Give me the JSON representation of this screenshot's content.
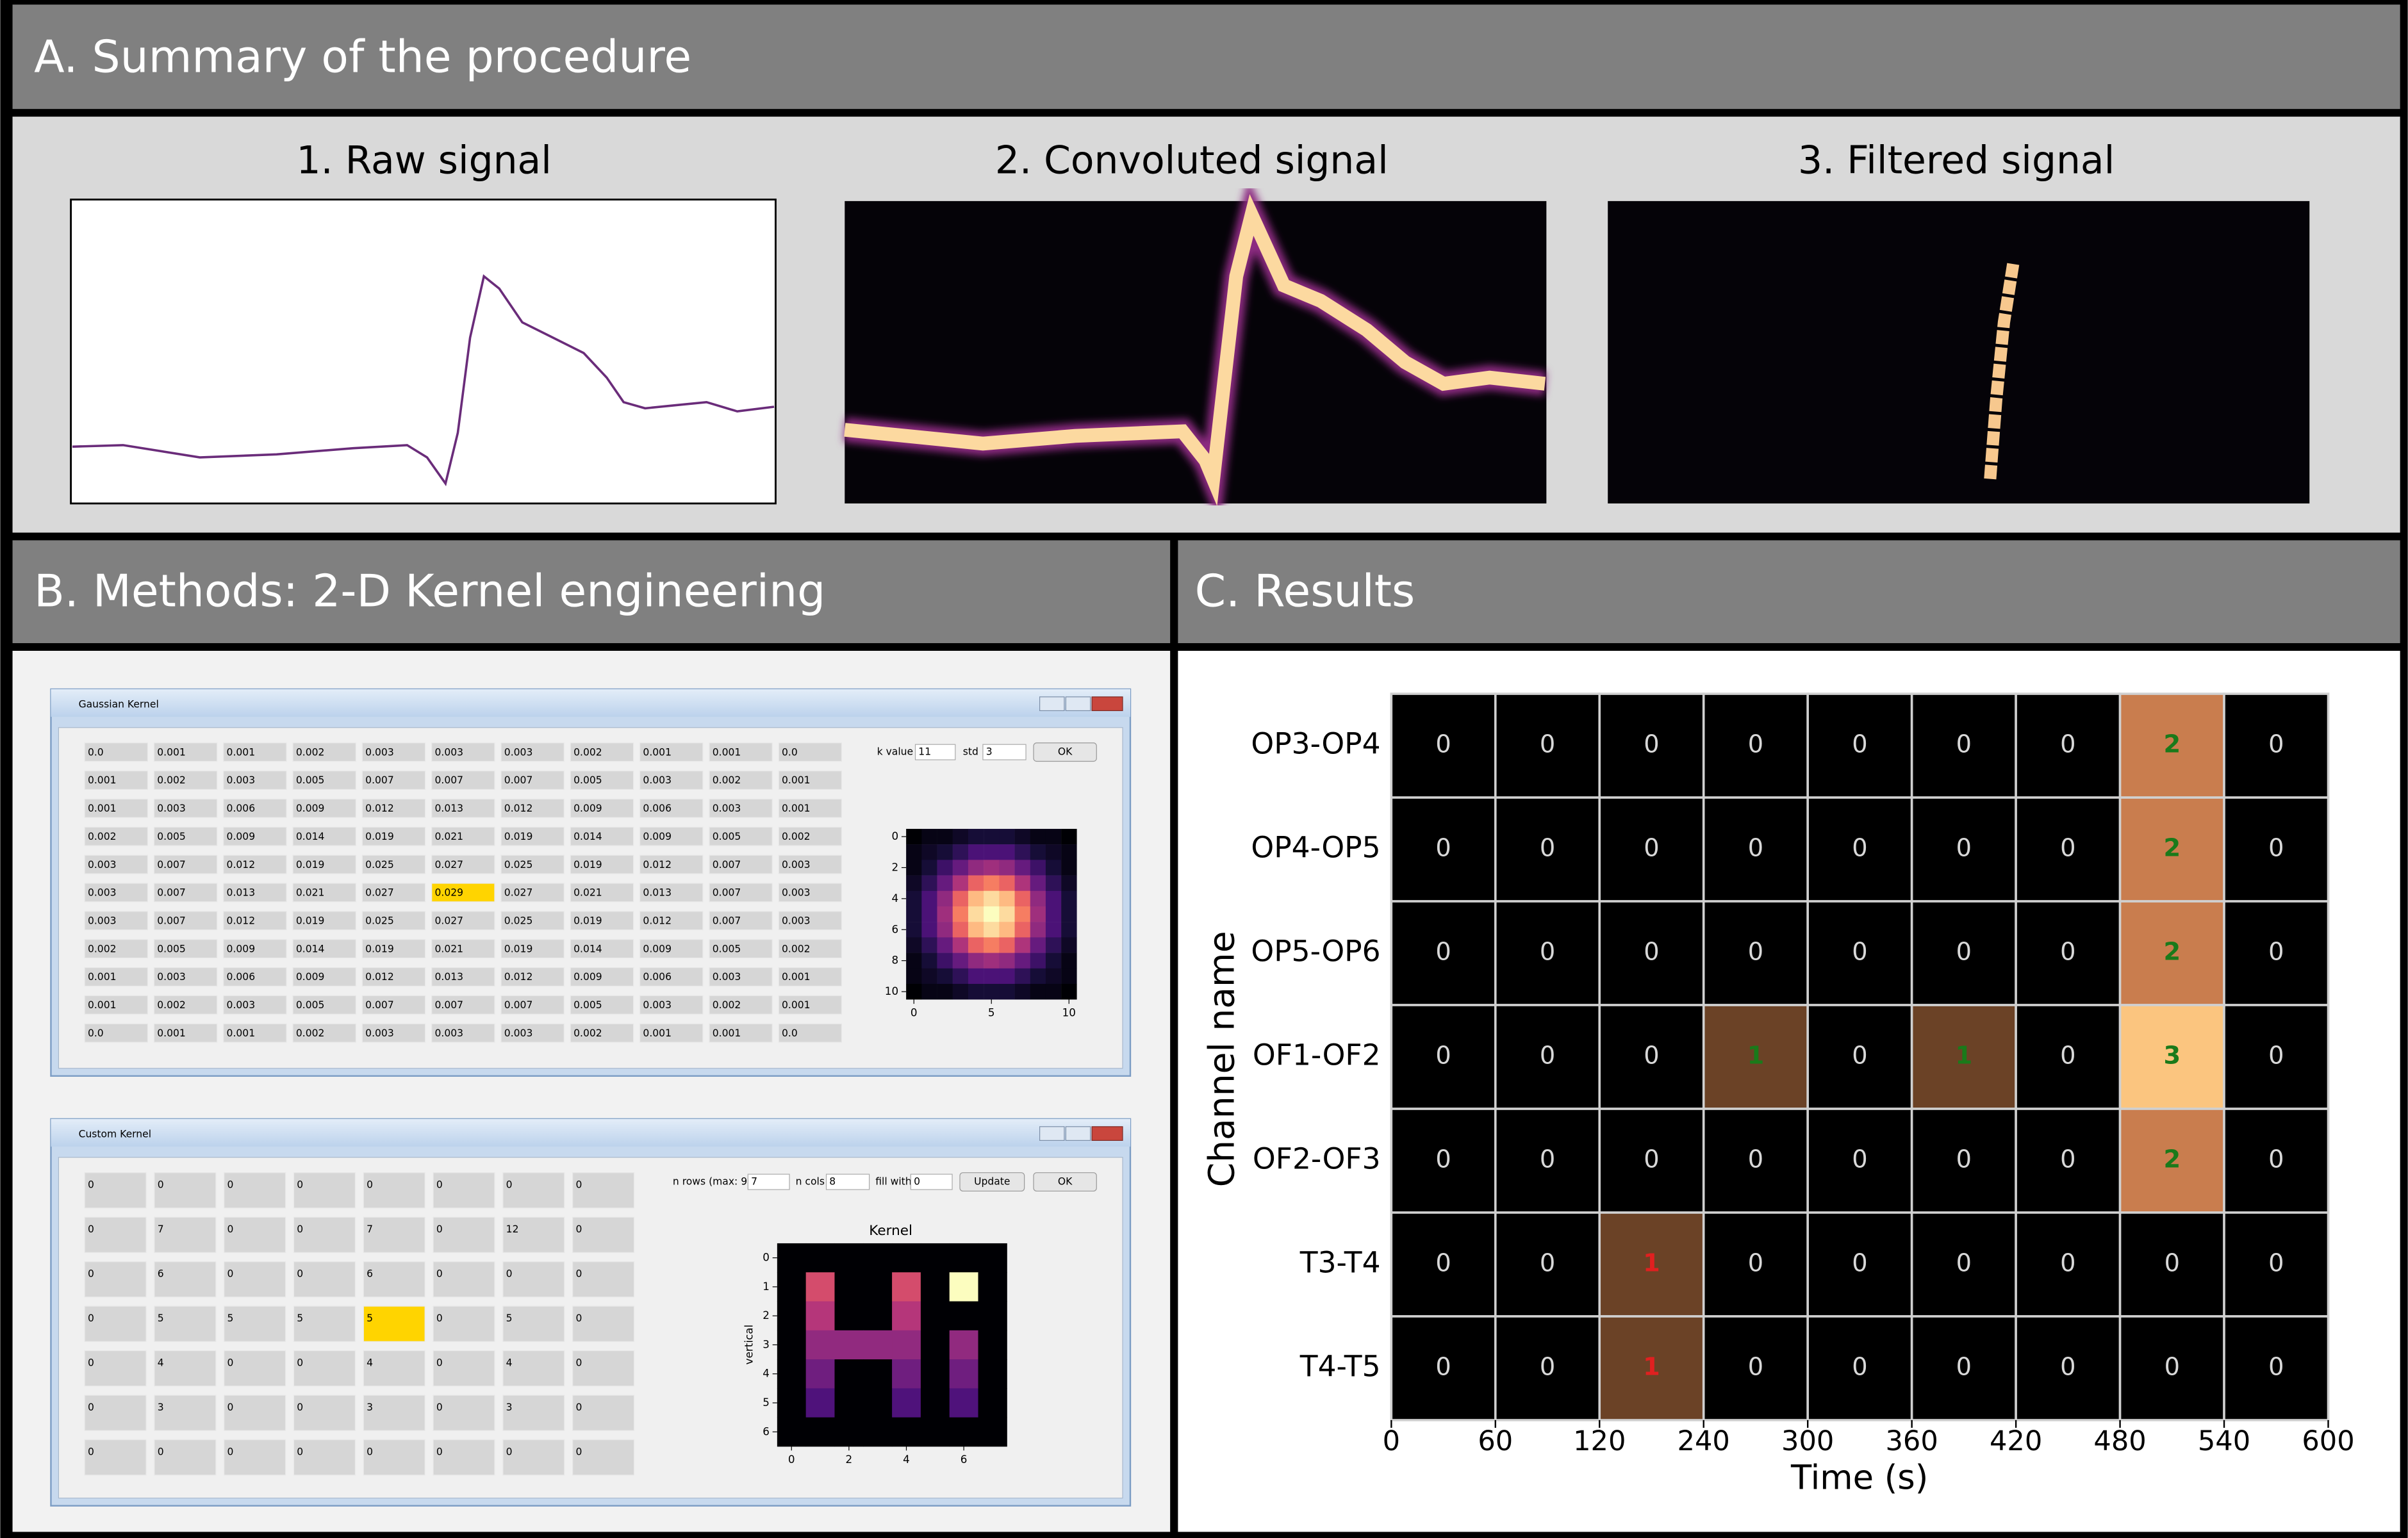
{
  "panel_a": {
    "title": "A. Summary of the procedure",
    "panels": [
      "1. Raw signal",
      "2. Convoluted signal",
      "3. Filtered signal"
    ]
  },
  "panel_b": {
    "title": "B. Methods: 2-D Kernel engineering",
    "gaussian_window": {
      "title": "Gaussian Kernel",
      "grid": [
        [
          "0.0",
          "0.001",
          "0.001",
          "0.002",
          "0.003",
          "0.003",
          "0.003",
          "0.002",
          "0.001",
          "0.001",
          "0.0"
        ],
        [
          "0.001",
          "0.002",
          "0.003",
          "0.005",
          "0.007",
          "0.007",
          "0.007",
          "0.005",
          "0.003",
          "0.002",
          "0.001"
        ],
        [
          "0.001",
          "0.003",
          "0.006",
          "0.009",
          "0.012",
          "0.013",
          "0.012",
          "0.009",
          "0.006",
          "0.003",
          "0.001"
        ],
        [
          "0.002",
          "0.005",
          "0.009",
          "0.014",
          "0.019",
          "0.021",
          "0.019",
          "0.014",
          "0.009",
          "0.005",
          "0.002"
        ],
        [
          "0.003",
          "0.007",
          "0.012",
          "0.019",
          "0.025",
          "0.027",
          "0.025",
          "0.019",
          "0.012",
          "0.007",
          "0.003"
        ],
        [
          "0.003",
          "0.007",
          "0.013",
          "0.021",
          "0.027",
          "0.029",
          "0.027",
          "0.021",
          "0.013",
          "0.007",
          "0.003"
        ],
        [
          "0.003",
          "0.007",
          "0.012",
          "0.019",
          "0.025",
          "0.027",
          "0.025",
          "0.019",
          "0.012",
          "0.007",
          "0.003"
        ],
        [
          "0.002",
          "0.005",
          "0.009",
          "0.014",
          "0.019",
          "0.021",
          "0.019",
          "0.014",
          "0.009",
          "0.005",
          "0.002"
        ],
        [
          "0.001",
          "0.003",
          "0.006",
          "0.009",
          "0.012",
          "0.013",
          "0.012",
          "0.009",
          "0.006",
          "0.003",
          "0.001"
        ],
        [
          "0.001",
          "0.002",
          "0.003",
          "0.005",
          "0.007",
          "0.007",
          "0.007",
          "0.005",
          "0.003",
          "0.002",
          "0.001"
        ],
        [
          "0.0",
          "0.001",
          "0.001",
          "0.002",
          "0.003",
          "0.003",
          "0.003",
          "0.002",
          "0.001",
          "0.001",
          "0.0"
        ]
      ],
      "k_value_label": "k value",
      "k_value": "11",
      "std_label": "std",
      "std": "3",
      "ok": "OK",
      "plot": {
        "yticks": [
          "0",
          "2",
          "4",
          "6",
          "8",
          "10"
        ],
        "xticks": [
          "0",
          "5",
          "10"
        ]
      }
    },
    "custom_window": {
      "title": "Custom Kernel",
      "grid": [
        [
          "0",
          "0",
          "0",
          "0",
          "0",
          "0",
          "0",
          "0"
        ],
        [
          "0",
          "7",
          "0",
          "0",
          "7",
          "0",
          "12",
          "0"
        ],
        [
          "0",
          "6",
          "0",
          "0",
          "6",
          "0",
          "0",
          "0"
        ],
        [
          "0",
          "5",
          "5",
          "5",
          "5",
          "0",
          "5",
          "0"
        ],
        [
          "0",
          "4",
          "0",
          "0",
          "4",
          "0",
          "4",
          "0"
        ],
        [
          "0",
          "3",
          "0",
          "0",
          "3",
          "0",
          "3",
          "0"
        ],
        [
          "0",
          "0",
          "0",
          "0",
          "0",
          "0",
          "0",
          "0"
        ]
      ],
      "n_rows_label": "n rows (max: 9)",
      "n_rows": "7",
      "n_cols_label": "n cols",
      "n_cols": "8",
      "fill_label": "fill with",
      "fill": "0",
      "update": "Update",
      "ok": "OK",
      "plot": {
        "title": "Kernel",
        "ylabel": "vertical",
        "yticks": [
          "0",
          "1",
          "2",
          "3",
          "4",
          "5",
          "6"
        ],
        "xticks": [
          "0",
          "2",
          "4",
          "6"
        ]
      }
    }
  },
  "panel_c": {
    "title": "C. Results",
    "ylabel": "Channel name",
    "xlabel": "Time (s)",
    "x_edge_labels": [
      "0",
      "60",
      "120",
      "240",
      "300",
      "360",
      "420",
      "480",
      "540",
      "600"
    ],
    "palette": [
      "#000000",
      "#6b4226",
      "#c97d4e",
      "#fbc57f"
    ],
    "zero_text_color": "#d8d8d8",
    "rows": [
      {
        "name": "OP3-OP4",
        "values": [
          0,
          0,
          0,
          0,
          0,
          0,
          0,
          2,
          0
        ],
        "text_color": "#1a7a1a"
      },
      {
        "name": "OP4-OP5",
        "values": [
          0,
          0,
          0,
          0,
          0,
          0,
          0,
          2,
          0
        ],
        "text_color": "#1a7a1a"
      },
      {
        "name": "OP5-OP6",
        "values": [
          0,
          0,
          0,
          0,
          0,
          0,
          0,
          2,
          0
        ],
        "text_color": "#1a7a1a"
      },
      {
        "name": "OF1-OF2",
        "values": [
          0,
          0,
          0,
          1,
          0,
          1,
          0,
          3,
          0
        ],
        "text_color": "#1a7a1a"
      },
      {
        "name": "OF2-OF3",
        "values": [
          0,
          0,
          0,
          0,
          0,
          0,
          0,
          2,
          0
        ],
        "text_color": "#1a7a1a"
      },
      {
        "name": "T3-T4",
        "values": [
          0,
          0,
          1,
          0,
          0,
          0,
          0,
          0,
          0
        ],
        "text_color": "#e02020"
      },
      {
        "name": "T4-T5",
        "values": [
          0,
          0,
          1,
          0,
          0,
          0,
          0,
          0,
          0
        ],
        "text_color": "#e02020"
      }
    ]
  }
}
